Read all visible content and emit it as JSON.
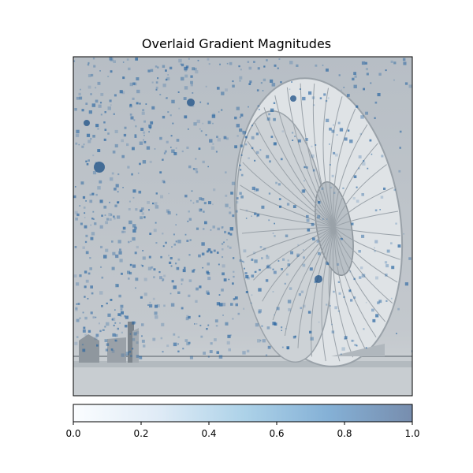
{
  "chart_data": {
    "type": "heatmap",
    "title": "Overlaid Gradient Magnitudes",
    "xlabel": "",
    "ylabel": "",
    "axes_ticks": "hidden",
    "grid": false,
    "colorbar": {
      "orientation": "horizontal",
      "placement": "bottom",
      "range": [
        0,
        1
      ],
      "ticks": [
        0.0,
        0.2,
        0.4,
        0.6,
        0.8,
        1.0
      ],
      "tick_labels": [
        "0.0",
        "0.2",
        "0.4",
        "0.6",
        "0.8",
        "1.0"
      ],
      "colormap_colors": [
        "#f7fbff",
        "#c6dbef",
        "#6baed6",
        "#2171b5",
        "#08306b"
      ]
    },
    "background_image": "grayscale photo of a parachute on the ground",
    "colors": {
      "sky": "#b9c0c6",
      "ground": "#c7ccd0",
      "canopy": "#e2e6e9",
      "canopy_shadow": "#8e969d",
      "speck": "#1f5f9e"
    }
  }
}
